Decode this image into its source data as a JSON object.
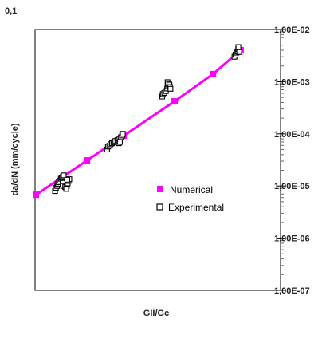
{
  "chart_data": {
    "type": "scatter",
    "title": "",
    "xlabel": "GII/Gc",
    "ylabel": "da/dN (mm/cycle)",
    "corner_label": "0,1",
    "y_scale": "log",
    "ylim": [
      1e-07,
      0.01
    ],
    "xlim": [
      0,
      1
    ],
    "grid": false,
    "legend_position": "center-right",
    "y_ticks": [
      {
        "value": 0.01,
        "label": "1,00E-02"
      },
      {
        "value": 0.001,
        "label": "1,00E-03"
      },
      {
        "value": 0.0001,
        "label": "1,00E-04"
      },
      {
        "value": 1e-05,
        "label": "1,00E-05"
      },
      {
        "value": 1e-06,
        "label": "1,00E-06"
      },
      {
        "value": 1e-07,
        "label": "1,00E-07"
      }
    ],
    "series": [
      {
        "name": "Numerical",
        "color": "#ff00ff",
        "marker": "filled-square",
        "line": true,
        "points": [
          {
            "x": 0.0,
            "y": 6.8e-06
          },
          {
            "x": 0.248,
            "y": 3.1e-05
          },
          {
            "x": 0.425,
            "y": 9.2e-05
          },
          {
            "x": 0.672,
            "y": 0.00042
          },
          {
            "x": 0.858,
            "y": 0.0014
          },
          {
            "x": 0.992,
            "y": 0.004
          }
        ]
      },
      {
        "name": "Experimental",
        "color": "#000000",
        "marker": "open-square",
        "line": false,
        "points": [
          {
            "x": 0.093,
            "y": 8e-06
          },
          {
            "x": 0.097,
            "y": 9.2e-06
          },
          {
            "x": 0.103,
            "y": 1e-05
          },
          {
            "x": 0.107,
            "y": 1.1e-05
          },
          {
            "x": 0.112,
            "y": 1.18e-05
          },
          {
            "x": 0.116,
            "y": 1.26e-05
          },
          {
            "x": 0.121,
            "y": 1.38e-05
          },
          {
            "x": 0.126,
            "y": 1.45e-05
          },
          {
            "x": 0.131,
            "y": 1.52e-05
          },
          {
            "x": 0.135,
            "y": 1.6e-05
          },
          {
            "x": 0.13,
            "y": 1.15e-05
          },
          {
            "x": 0.133,
            "y": 1e-05
          },
          {
            "x": 0.142,
            "y": 9.5e-06
          },
          {
            "x": 0.15,
            "y": 1e-05
          },
          {
            "x": 0.154,
            "y": 1.12e-05
          },
          {
            "x": 0.158,
            "y": 1.25e-05
          },
          {
            "x": 0.162,
            "y": 1.35e-05
          },
          {
            "x": 0.147,
            "y": 8.8e-06
          },
          {
            "x": 0.152,
            "y": 1.32e-05
          },
          {
            "x": 0.345,
            "y": 5e-05
          },
          {
            "x": 0.349,
            "y": 5.7e-05
          },
          {
            "x": 0.356,
            "y": 5.9e-05
          },
          {
            "x": 0.362,
            "y": 6.3e-05
          },
          {
            "x": 0.369,
            "y": 6.6e-05
          },
          {
            "x": 0.376,
            "y": 6.9e-05
          },
          {
            "x": 0.385,
            "y": 7.3e-05
          },
          {
            "x": 0.395,
            "y": 7.6e-05
          },
          {
            "x": 0.405,
            "y": 8e-05
          },
          {
            "x": 0.412,
            "y": 8.6e-05
          },
          {
            "x": 0.418,
            "y": 9.3e-05
          },
          {
            "x": 0.421,
            "y": 0.0001
          },
          {
            "x": 0.402,
            "y": 6.6e-05
          },
          {
            "x": 0.407,
            "y": 7e-05
          },
          {
            "x": 0.612,
            "y": 0.00052
          },
          {
            "x": 0.615,
            "y": 0.00058
          },
          {
            "x": 0.622,
            "y": 0.00061
          },
          {
            "x": 0.63,
            "y": 0.00066
          },
          {
            "x": 0.636,
            "y": 0.00074
          },
          {
            "x": 0.641,
            "y": 0.00081
          },
          {
            "x": 0.642,
            "y": 0.00091
          },
          {
            "x": 0.638,
            "y": 0.00098
          },
          {
            "x": 0.64,
            "y": 0.00092
          },
          {
            "x": 0.647,
            "y": 0.00088
          },
          {
            "x": 0.65,
            "y": 0.00079
          },
          {
            "x": 0.652,
            "y": 0.00073
          },
          {
            "x": 0.962,
            "y": 0.003
          },
          {
            "x": 0.967,
            "y": 0.0033
          },
          {
            "x": 0.972,
            "y": 0.0036
          },
          {
            "x": 0.977,
            "y": 0.0038
          },
          {
            "x": 0.98,
            "y": 0.0042
          },
          {
            "x": 0.981,
            "y": 0.0046
          },
          {
            "x": 0.985,
            "y": 0.0037
          }
        ]
      }
    ]
  }
}
